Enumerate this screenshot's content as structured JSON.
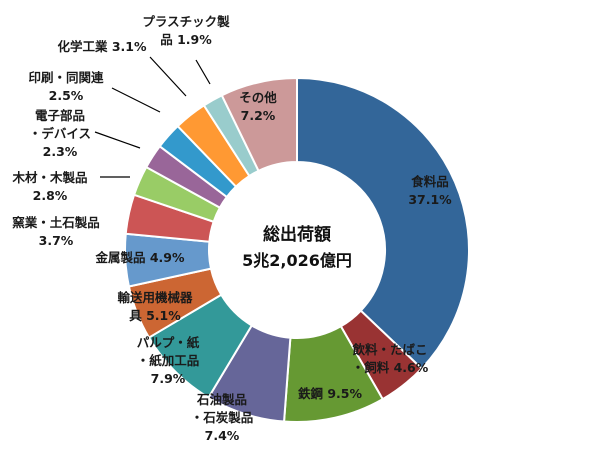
{
  "chart_data": {
    "type": "pie",
    "variant": "donut",
    "center_title": "総出荷額",
    "center_value": "5兆2,026億円",
    "slices": [
      {
        "label": "食料品",
        "value_text": "37.1%",
        "value": 37.1,
        "color": "#336699"
      },
      {
        "label": "飲料・たばこ・飼料",
        "value_text": "4.6%",
        "value": 4.6,
        "color": "#993333"
      },
      {
        "label": "鉄鋼",
        "value_text": "9.5%",
        "value": 9.5,
        "color": "#669933"
      },
      {
        "label": "石油製品・石炭製品",
        "value_text": "7.4%",
        "value": 7.4,
        "color": "#666699"
      },
      {
        "label": "パルプ・紙・紙加工品",
        "value_text": "7.9%",
        "value": 7.9,
        "color": "#339999"
      },
      {
        "label": "輸送用機械器具",
        "value_text": "5.1%",
        "value": 5.1,
        "color": "#cc6633"
      },
      {
        "label": "金属製品",
        "value_text": "4.9%",
        "value": 4.9,
        "color": "#6699cc"
      },
      {
        "label": "窯業・土石製品",
        "value_text": "3.7%",
        "value": 3.7,
        "color": "#cc5555"
      },
      {
        "label": "木材・木製品",
        "value_text": "2.8%",
        "value": 2.8,
        "color": "#99cc66"
      },
      {
        "label": "電子部品・デバイス",
        "value_text": "2.3%",
        "value": 2.3,
        "color": "#996699"
      },
      {
        "label": "印刷・同関連",
        "value_text": "2.5%",
        "value": 2.5,
        "color": "#3399cc"
      },
      {
        "label": "化学工業",
        "value_text": "3.1%",
        "value": 3.1,
        "color": "#ff9933"
      },
      {
        "label": "プラスチック製品",
        "value_text": "1.9%",
        "value": 1.9,
        "color": "#99cccc"
      },
      {
        "label": "その他",
        "value_text": "7.2%",
        "value": 7.2,
        "color": "#cc9999"
      }
    ]
  }
}
